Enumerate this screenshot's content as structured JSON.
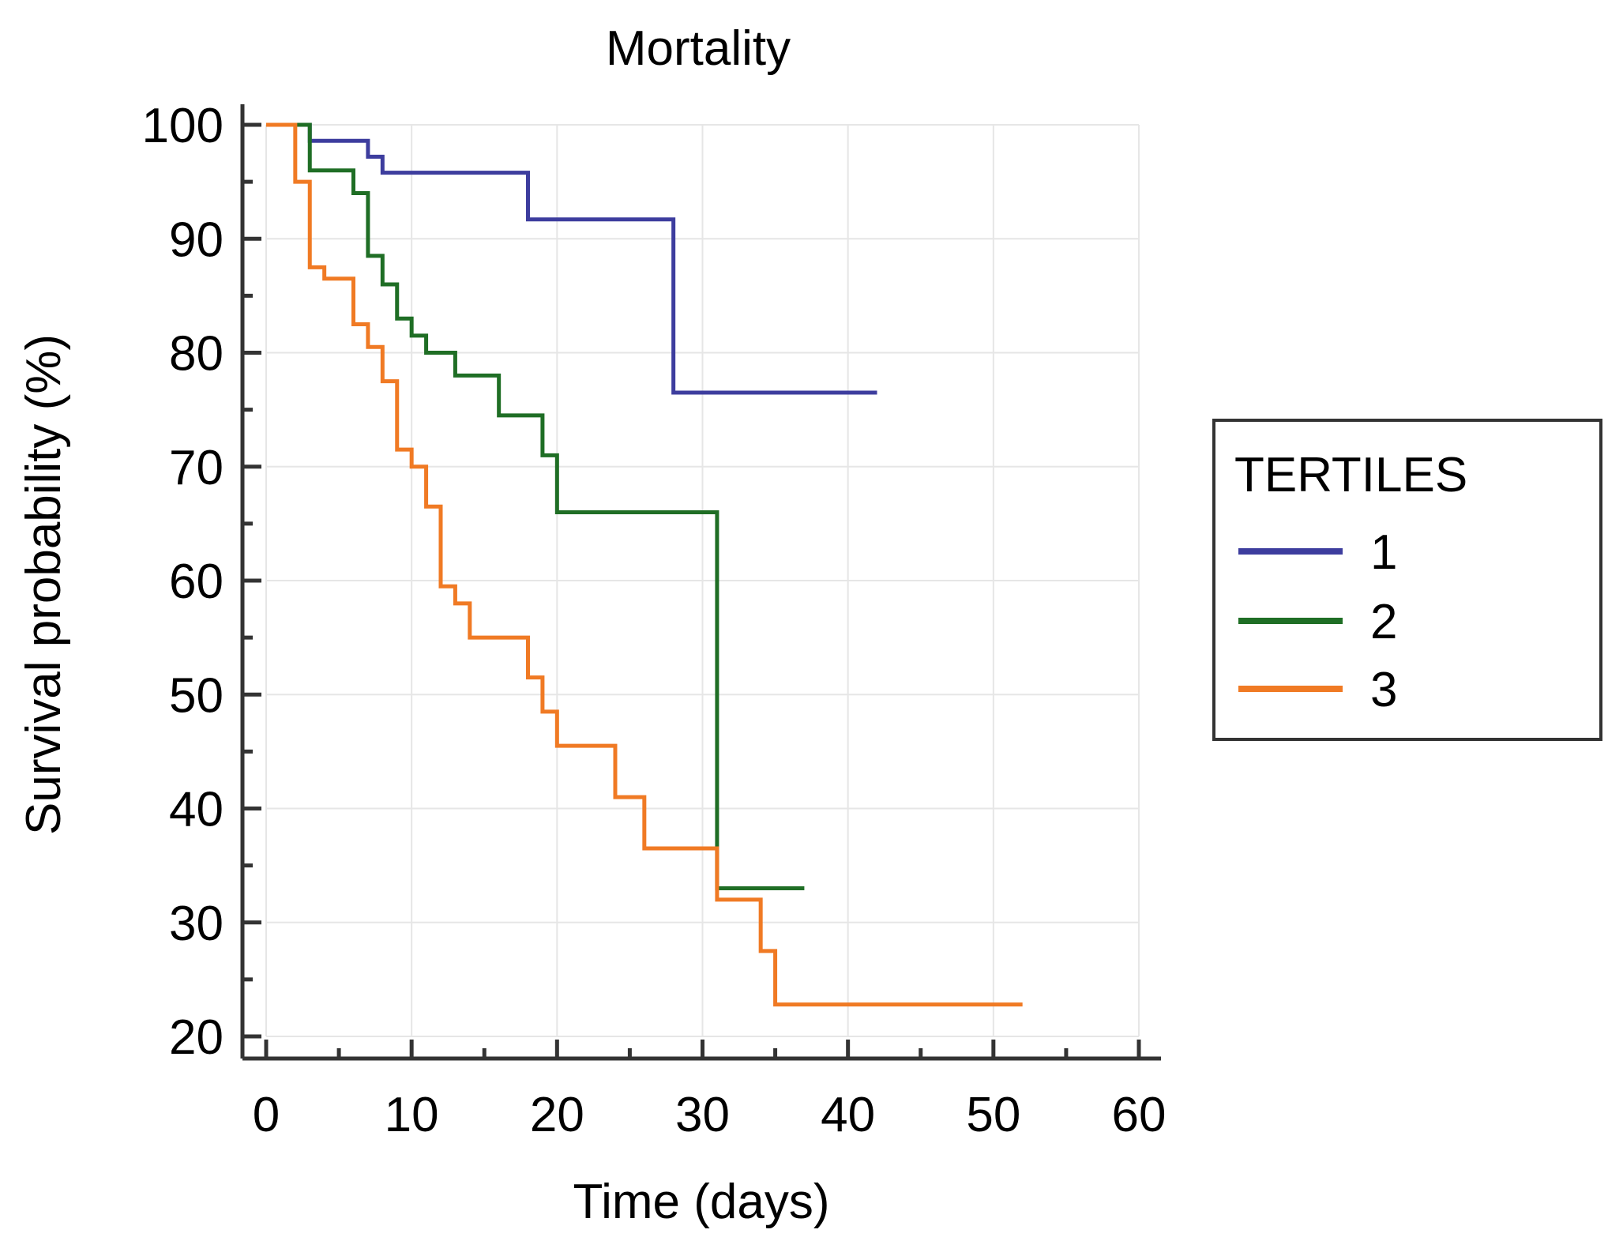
{
  "chart_data": {
    "type": "line",
    "subtype": "kaplan-meier-step",
    "title": "Mortality",
    "xlabel": "Time (days)",
    "ylabel": "Survival probability (%)",
    "xlim": [
      0,
      60
    ],
    "ylim": [
      20,
      100
    ],
    "xticks": [
      0,
      10,
      20,
      30,
      40,
      50,
      60
    ],
    "yticks": [
      20,
      30,
      40,
      50,
      60,
      70,
      80,
      90,
      100
    ],
    "grid": true,
    "legend": {
      "title": "TERTILES",
      "position": "right"
    },
    "series": [
      {
        "name": "1",
        "color": "#3d3d9e",
        "x": [
          0,
          3,
          7,
          8,
          18,
          28,
          42
        ],
        "y": [
          100,
          98.6,
          97.2,
          95.8,
          91.7,
          76.5,
          76.5
        ]
      },
      {
        "name": "2",
        "color": "#1f6e25",
        "x": [
          0,
          3,
          6,
          7,
          8,
          9,
          10,
          11,
          13,
          16,
          19,
          20,
          31,
          37
        ],
        "y": [
          100,
          96,
          94,
          88.5,
          86,
          83,
          81.5,
          80,
          78,
          74.5,
          71,
          66,
          33,
          33
        ],
        "extra": [
          [
            7.5,
            88.5
          ],
          [
            8.5,
            86
          ]
        ]
      },
      {
        "name": "3",
        "color": "#f07a24",
        "x": [
          0,
          2,
          3,
          4,
          6,
          7,
          8,
          9,
          10,
          11,
          12,
          13,
          14,
          18,
          19,
          20,
          24,
          26,
          31,
          34,
          35,
          52
        ],
        "y": [
          100,
          95,
          87.5,
          86.5,
          82.5,
          80.5,
          77.5,
          71.5,
          70,
          66.5,
          59.5,
          58,
          55,
          51.5,
          48.5,
          45.5,
          41,
          36.5,
          32,
          27.5,
          22.8,
          22.8
        ]
      }
    ]
  }
}
